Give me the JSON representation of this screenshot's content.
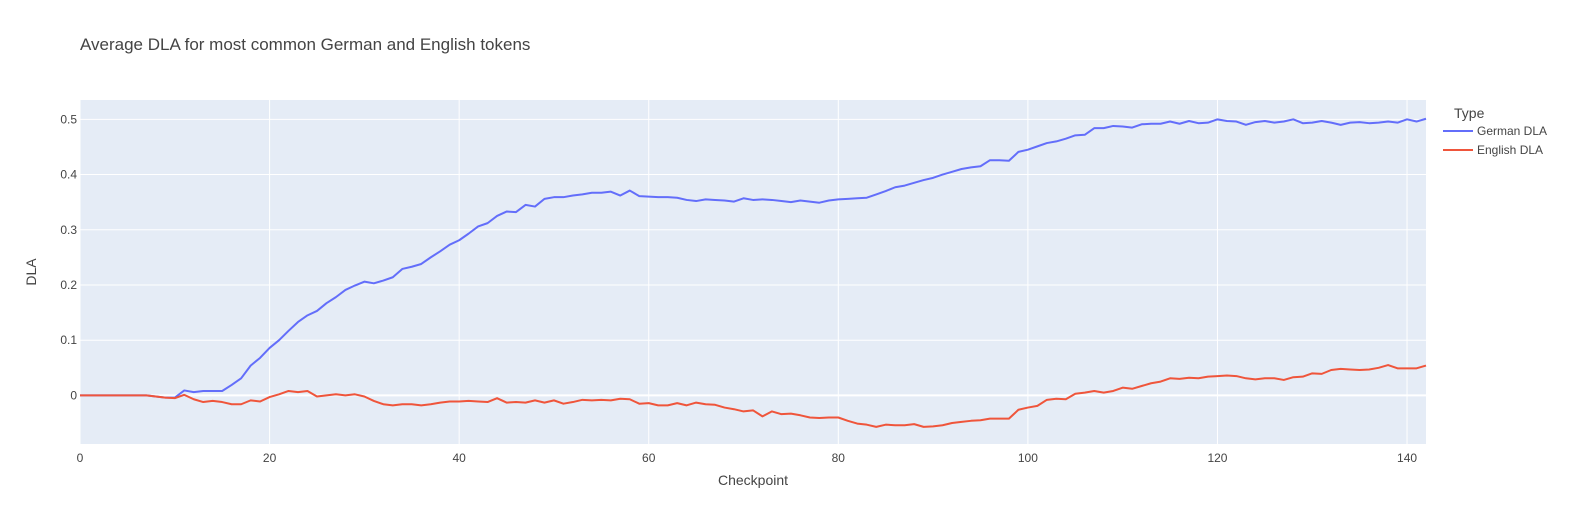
{
  "chart_data": {
    "type": "line",
    "title": "Average DLA for most common German and English tokens",
    "xlabel": "Checkpoint",
    "ylabel": "DLA",
    "xlim": [
      0,
      142
    ],
    "ylim": [
      -0.088,
      0.535
    ],
    "x_ticks": [
      0,
      20,
      40,
      60,
      80,
      100,
      120,
      140
    ],
    "y_ticks": [
      0,
      0.1,
      0.2,
      0.3,
      0.4,
      0.5
    ],
    "y_tick_labels": [
      "0",
      "0.1",
      "0.2",
      "0.3",
      "0.4",
      "0.5"
    ],
    "grid": true,
    "legend": {
      "title": "Type",
      "placement": "top-right-outside"
    },
    "x": [
      0,
      1,
      2,
      3,
      4,
      5,
      6,
      7,
      8,
      9,
      10,
      11,
      12,
      13,
      14,
      15,
      16,
      17,
      18,
      19,
      20,
      21,
      22,
      23,
      24,
      25,
      26,
      27,
      28,
      29,
      30,
      31,
      32,
      33,
      34,
      35,
      36,
      37,
      38,
      39,
      40,
      41,
      42,
      43,
      44,
      45,
      46,
      47,
      48,
      49,
      50,
      51,
      52,
      53,
      54,
      55,
      56,
      57,
      58,
      59,
      60,
      61,
      62,
      63,
      64,
      65,
      66,
      67,
      68,
      69,
      70,
      71,
      72,
      73,
      74,
      75,
      76,
      77,
      78,
      79,
      80,
      81,
      82,
      83,
      84,
      85,
      86,
      87,
      88,
      89,
      90,
      91,
      92,
      93,
      94,
      95,
      96,
      97,
      98,
      99,
      100,
      101,
      102,
      103,
      104,
      105,
      106,
      107,
      108,
      109,
      110,
      111,
      112,
      113,
      114,
      115,
      116,
      117,
      118,
      119,
      120,
      121,
      122,
      123,
      124,
      125,
      126,
      127,
      128,
      129,
      130,
      131,
      132,
      133,
      134,
      135,
      136,
      137,
      138,
      139,
      140,
      141,
      142
    ],
    "series": [
      {
        "name": "German DLA",
        "color": "#636efa",
        "values": [
          0,
          0,
          0,
          0,
          0,
          0,
          0,
          0,
          -0.002,
          -0.004,
          -0.004,
          0.009,
          0.006,
          0.008,
          0.008,
          0.008,
          0.019,
          0.031,
          0.054,
          0.068,
          0.086,
          0.1,
          0.117,
          0.133,
          0.145,
          0.153,
          0.167,
          0.178,
          0.191,
          0.199,
          0.206,
          0.203,
          0.208,
          0.214,
          0.229,
          0.233,
          0.238,
          0.25,
          0.261,
          0.273,
          0.281,
          0.293,
          0.306,
          0.312,
          0.325,
          0.333,
          0.332,
          0.345,
          0.342,
          0.356,
          0.359,
          0.359,
          0.362,
          0.364,
          0.367,
          0.367,
          0.369,
          0.362,
          0.371,
          0.361,
          0.36,
          0.359,
          0.359,
          0.358,
          0.354,
          0.352,
          0.355,
          0.354,
          0.353,
          0.351,
          0.357,
          0.354,
          0.355,
          0.354,
          0.352,
          0.35,
          0.353,
          0.351,
          0.349,
          0.353,
          0.355,
          0.356,
          0.357,
          0.358,
          0.364,
          0.37,
          0.377,
          0.38,
          0.385,
          0.39,
          0.394,
          0.4,
          0.405,
          0.41,
          0.413,
          0.415,
          0.426,
          0.426,
          0.425,
          0.441,
          0.445,
          0.451,
          0.457,
          0.46,
          0.465,
          0.471,
          0.472,
          0.484,
          0.484,
          0.488,
          0.487,
          0.485,
          0.491,
          0.492,
          0.492,
          0.496,
          0.492,
          0.497,
          0.493,
          0.494,
          0.5,
          0.497,
          0.496,
          0.49,
          0.495,
          0.497,
          0.494,
          0.496,
          0.5,
          0.493,
          0.494,
          0.497,
          0.494,
          0.49,
          0.494,
          0.495,
          0.493,
          0.494,
          0.496,
          0.494,
          0.5,
          0.496,
          0.501
        ]
      },
      {
        "name": "English DLA",
        "color": "#ef553b",
        "values": [
          0,
          0,
          0,
          0,
          0,
          0,
          0,
          0,
          -0.002,
          -0.004,
          -0.005,
          0.001,
          -0.007,
          -0.012,
          -0.01,
          -0.012,
          -0.016,
          -0.016,
          -0.009,
          -0.011,
          -0.003,
          0.002,
          0.008,
          0.006,
          0.008,
          -0.002,
          0,
          0.002,
          0,
          0.002,
          -0.002,
          -0.01,
          -0.016,
          -0.018,
          -0.016,
          -0.016,
          -0.018,
          -0.016,
          -0.013,
          -0.011,
          -0.011,
          -0.01,
          -0.011,
          -0.012,
          -0.005,
          -0.013,
          -0.012,
          -0.013,
          -0.009,
          -0.013,
          -0.009,
          -0.015,
          -0.012,
          -0.008,
          -0.009,
          -0.008,
          -0.009,
          -0.006,
          -0.007,
          -0.015,
          -0.014,
          -0.018,
          -0.018,
          -0.014,
          -0.018,
          -0.013,
          -0.016,
          -0.017,
          -0.022,
          -0.025,
          -0.029,
          -0.027,
          -0.038,
          -0.029,
          -0.034,
          -0.033,
          -0.036,
          -0.04,
          -0.041,
          -0.04,
          -0.04,
          -0.046,
          -0.051,
          -0.053,
          -0.057,
          -0.053,
          -0.054,
          -0.054,
          -0.052,
          -0.057,
          -0.056,
          -0.054,
          -0.05,
          -0.048,
          -0.046,
          -0.045,
          -0.042,
          -0.042,
          -0.042,
          -0.026,
          -0.022,
          -0.019,
          -0.008,
          -0.006,
          -0.007,
          0.003,
          0.005,
          0.008,
          0.005,
          0.008,
          0.014,
          0.012,
          0.017,
          0.022,
          0.025,
          0.031,
          0.03,
          0.032,
          0.031,
          0.034,
          0.035,
          0.036,
          0.035,
          0.031,
          0.029,
          0.031,
          0.031,
          0.028,
          0.033,
          0.034,
          0.04,
          0.039,
          0.046,
          0.048,
          0.047,
          0.046,
          0.047,
          0.05,
          0.055,
          0.049,
          0.049,
          0.049,
          0.054
        ]
      }
    ]
  }
}
